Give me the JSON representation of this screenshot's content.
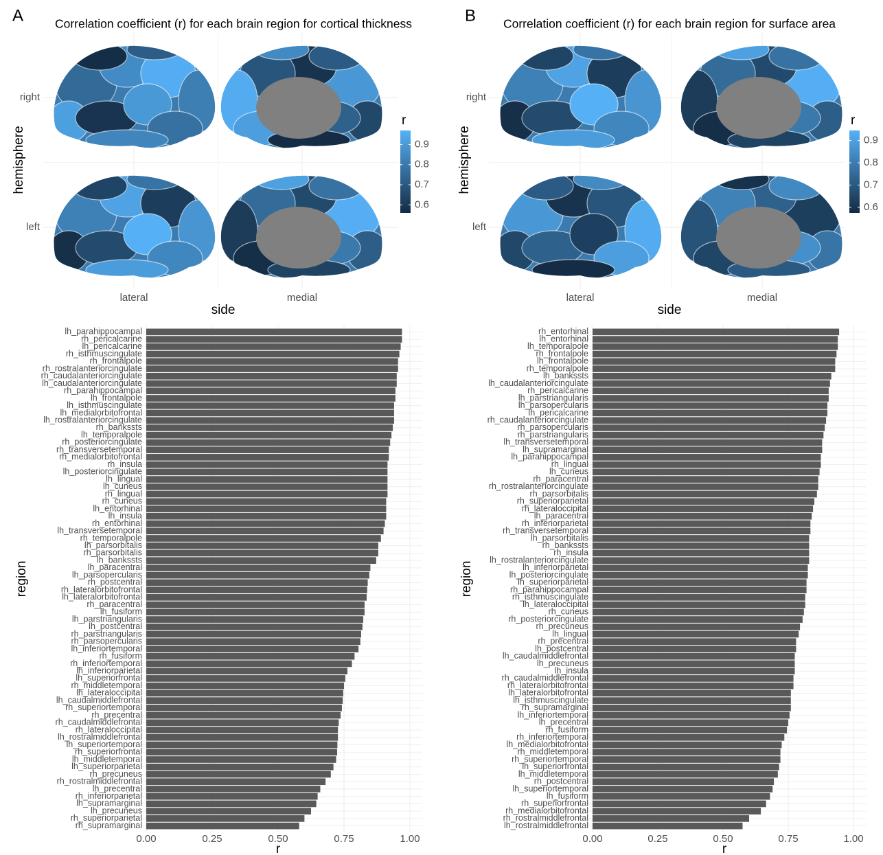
{
  "chart_data": [
    {
      "type": "brainmap",
      "panel": "A",
      "title": "Correlation coefficient (r) for each brain region for cortical thickness",
      "ylabel": "hemisphere",
      "xlabel": "side",
      "rows": [
        "right",
        "left"
      ],
      "columns": [
        "lateral",
        "medial"
      ],
      "legend_title": "r",
      "colorbar_lim": [
        0.56,
        0.97
      ],
      "colorbar_ticks": [
        0.6,
        0.7,
        0.8,
        0.9
      ],
      "colors": [
        "#132b43",
        "#56b1f7"
      ],
      "grid": true
    },
    {
      "type": "barh",
      "xlabel": "r",
      "ylabel": "region",
      "color": "#595959",
      "grid": true,
      "xlim": [
        0,
        1
      ],
      "xticks": [
        {
          "value": 0,
          "label": "0.00"
        },
        {
          "value": 0.25,
          "label": "0.25"
        },
        {
          "value": 0.5,
          "label": "0.50"
        },
        {
          "value": 0.75,
          "label": "0.75"
        },
        {
          "value": 1,
          "label": "1.00"
        }
      ],
      "categories": [
        "lh_parahippocampal",
        "rh_pericalcarine",
        "lh_pericalcarine",
        "rh_isthmuscingulate",
        "rh_frontalpole",
        "rh_rostralanteriorcingulate",
        "rh_caudalanteriorcingulate",
        "lh_caudalanteriorcingulate",
        "rh_parahippocampal",
        "lh_frontalpole",
        "lh_isthmuscingulate",
        "lh_medialorbitofrontal",
        "lh_rostralanteriorcingulate",
        "rh_bankssts",
        "lh_temporalpole",
        "rh_posteriorcingulate",
        "rh_transversetemporal",
        "rh_medialorbitofrontal",
        "rh_insula",
        "lh_posteriorcingulate",
        "lh_lingual",
        "lh_cuneus",
        "rh_lingual",
        "rh_cuneus",
        "lh_entorhinal",
        "lh_insula",
        "rh_entorhinal",
        "lh_transversetemporal",
        "rh_temporalpole",
        "lh_parsorbitalis",
        "rh_parsorbitalis",
        "lh_bankssts",
        "lh_paracentral",
        "lh_parsopercularis",
        "rh_postcentral",
        "rh_lateralorbitofrontal",
        "lh_lateralorbitofrontal",
        "rh_paracentral",
        "lh_fusiform",
        "lh_parstriangularis",
        "lh_postcentral",
        "rh_parstriangularis",
        "rh_parsopercularis",
        "lh_inferiortemporal",
        "rh_fusiform",
        "rh_inferiortemporal",
        "lh_inferiorparietal",
        "lh_superiorfrontal",
        "rh_middletemporal",
        "lh_lateraloccipital",
        "lh_caudalmiddlefrontal",
        "rh_superiortemporal",
        "rh_precentral",
        "rh_caudalmiddlefrontal",
        "rh_lateraloccipital",
        "lh_rostralmiddlefrontal",
        "lh_superiortemporal",
        "rh_superiorfrontal",
        "lh_middletemporal",
        "lh_superiorparietal",
        "rh_precuneus",
        "rh_rostralmiddlefrontal",
        "lh_precentral",
        "rh_inferiorparietal",
        "lh_supramarginal",
        "lh_precuneus",
        "rh_superiorparietal",
        "rh_supramarginal"
      ],
      "values": [
        0.97,
        0.97,
        0.965,
        0.96,
        0.955,
        0.955,
        0.95,
        0.95,
        0.945,
        0.945,
        0.94,
        0.94,
        0.94,
        0.935,
        0.93,
        0.925,
        0.92,
        0.92,
        0.915,
        0.915,
        0.915,
        0.915,
        0.915,
        0.91,
        0.91,
        0.91,
        0.905,
        0.9,
        0.89,
        0.88,
        0.88,
        0.872,
        0.85,
        0.846,
        0.84,
        0.838,
        0.836,
        0.828,
        0.828,
        0.823,
        0.82,
        0.815,
        0.812,
        0.805,
        0.79,
        0.78,
        0.763,
        0.755,
        0.75,
        0.747,
        0.745,
        0.742,
        0.737,
        0.73,
        0.727,
        0.727,
        0.725,
        0.724,
        0.72,
        0.71,
        0.7,
        0.68,
        0.66,
        0.65,
        0.645,
        0.625,
        0.6,
        0.58
      ]
    },
    {
      "type": "brainmap",
      "panel": "B",
      "title": "Correlation coefficient (r) for each brain region for surface area",
      "ylabel": "hemisphere",
      "xlabel": "side",
      "rows": [
        "right",
        "left"
      ],
      "columns": [
        "lateral",
        "medial"
      ],
      "legend_title": "r",
      "colorbar_lim": [
        0.575,
        0.945
      ],
      "colorbar_ticks": [
        0.6,
        0.7,
        0.8,
        0.9
      ],
      "colors": [
        "#132b43",
        "#56b1f7"
      ],
      "grid": true
    },
    {
      "type": "barh",
      "xlabel": "r",
      "ylabel": "region",
      "color": "#595959",
      "grid": true,
      "xlim": [
        0,
        1
      ],
      "xticks": [
        {
          "value": 0,
          "label": "0.00"
        },
        {
          "value": 0.25,
          "label": "0.25"
        },
        {
          "value": 0.5,
          "label": "0.50"
        },
        {
          "value": 0.75,
          "label": "0.75"
        },
        {
          "value": 1,
          "label": "1.00"
        }
      ],
      "categories": [
        "rh_entorhinal",
        "lh_entorhinal",
        "lh_temporalpole",
        "rh_frontalpole",
        "lh_frontalpole",
        "rh_temporalpole",
        "lh_bankssts",
        "lh_caudalanteriorcingulate",
        "rh_pericalcarine",
        "lh_parstriangularis",
        "lh_parsopercularis",
        "lh_pericalcarine",
        "rh_caudalanteriorcingulate",
        "rh_parsopercularis",
        "rh_parstriangularis",
        "lh_transversetemporal",
        "lh_supramarginal",
        "lh_parahippocampal",
        "rh_lingual",
        "lh_cuneus",
        "rh_paracentral",
        "rh_rostralanteriorcingulate",
        "rh_parsorbitalis",
        "rh_superiorparietal",
        "rh_lateraloccipital",
        "lh_paracentral",
        "rh_inferiorparietal",
        "rh_transversetemporal",
        "lh_parsorbitalis",
        "rh_bankssts",
        "rh_insula",
        "lh_rostralanteriorcingulate",
        "lh_inferiorparietal",
        "lh_posteriorcingulate",
        "lh_superiorparietal",
        "rh_parahippocampal",
        "rh_isthmuscingulate",
        "lh_lateraloccipital",
        "rh_cuneus",
        "rh_posteriorcingulate",
        "rh_precuneus",
        "lh_lingual",
        "rh_precentral",
        "lh_postcentral",
        "lh_caudalmiddlefrontal",
        "lh_precuneus",
        "lh_insula",
        "rh_caudalmiddlefrontal",
        "rh_lateralorbitofrontal",
        "lh_lateralorbitofrontal",
        "lh_isthmuscingulate",
        "rh_supramarginal",
        "lh_inferiortemporal",
        "lh_precentral",
        "rh_fusiform",
        "rh_inferiortemporal",
        "lh_medialorbitofrontal",
        "rh_middletemporal",
        "rh_superiortemporal",
        "lh_superiorfrontal",
        "lh_middletemporal",
        "rh_postcentral",
        "lh_superiortemporal",
        "lh_fusiform",
        "rh_superiorfrontal",
        "rh_medialorbitofrontal",
        "rh_rostralmiddlefrontal",
        "lh_rostralmiddlefrontal"
      ],
      "values": [
        0.945,
        0.94,
        0.94,
        0.935,
        0.93,
        0.93,
        0.915,
        0.91,
        0.905,
        0.905,
        0.9,
        0.9,
        0.895,
        0.89,
        0.885,
        0.88,
        0.88,
        0.875,
        0.875,
        0.87,
        0.865,
        0.865,
        0.86,
        0.85,
        0.845,
        0.84,
        0.835,
        0.835,
        0.83,
        0.83,
        0.83,
        0.83,
        0.825,
        0.825,
        0.82,
        0.82,
        0.815,
        0.815,
        0.81,
        0.805,
        0.795,
        0.79,
        0.78,
        0.78,
        0.775,
        0.775,
        0.775,
        0.77,
        0.77,
        0.76,
        0.76,
        0.76,
        0.755,
        0.75,
        0.745,
        0.735,
        0.725,
        0.72,
        0.72,
        0.715,
        0.71,
        0.695,
        0.69,
        0.68,
        0.665,
        0.645,
        0.6,
        0.575
      ]
    }
  ]
}
